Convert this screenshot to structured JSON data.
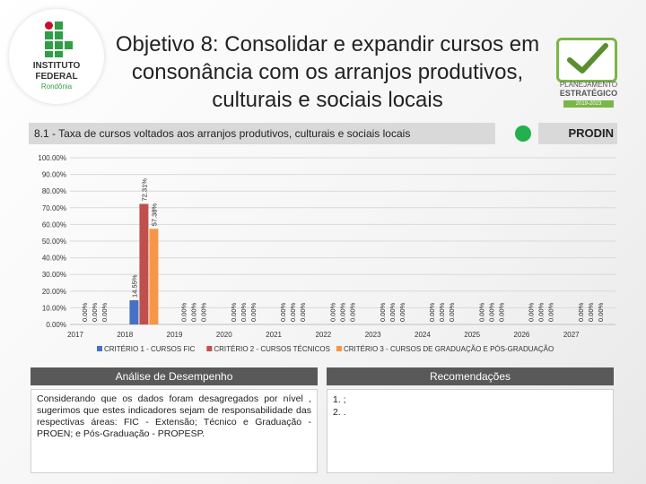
{
  "logo": {
    "line1": "INSTITUTO",
    "line2": "FEDERAL",
    "line3": "Rondônia"
  },
  "title": "Objetivo 8: Consolidar e expandir cursos em consonância com os arranjos produtivos, culturais e sociais locais",
  "brand_logo": {
    "line1": "PLANEJAMENTO",
    "line2": "ESTRATÉGICO",
    "line3": "2019-2023"
  },
  "indicator_label": "8.1 - Taxa de cursos voltados aos arranjos produtivos, culturais e sociais locais",
  "status_color": "#22b14c",
  "owner": "PRODIN",
  "chart_data": {
    "type": "bar",
    "categories": [
      "2017",
      "2018",
      "2019",
      "2020",
      "2021",
      "2022",
      "2023",
      "2024",
      "2025",
      "2026",
      "2027"
    ],
    "series": [
      {
        "name": "CRITÉRIO 1 - CURSOS FIC",
        "color": "#4472c4",
        "values": [
          0,
          14.55,
          0,
          0,
          0,
          0,
          0,
          0,
          0,
          0,
          0
        ]
      },
      {
        "name": "CRITÉRIO 2 - CURSOS TÉCNICOS",
        "color": "#c0504d",
        "values": [
          0,
          72.31,
          0,
          0,
          0,
          0,
          0,
          0,
          0,
          0,
          0
        ]
      },
      {
        "name": "CRITÉRIO 3 - CURSOS DE GRADUAÇÃO E PÓS-GRADUAÇÃO",
        "color": "#f79646",
        "values": [
          0,
          57.38,
          0,
          0,
          0,
          0,
          0,
          0,
          0,
          0,
          0
        ]
      }
    ],
    "data_labels": [
      [
        "0.00%",
        "14.55%",
        "0.00%",
        "0.00%",
        "0.00%",
        "0.00%",
        "0.00%",
        "0.00%",
        "0.00%",
        "0.00%",
        "0.00%"
      ],
      [
        "0.00%",
        "72.31%",
        "0.00%",
        "0.00%",
        "0.00%",
        "0.00%",
        "0.00%",
        "0.00%",
        "0.00%",
        "0.00%",
        "0.00%"
      ],
      [
        "0.00%",
        "57.38%",
        "0.00%",
        "0.00%",
        "0.00%",
        "0.00%",
        "0.00%",
        "0.00%",
        "0.00%",
        "0.00%",
        "0.00%"
      ]
    ],
    "ylim": [
      0,
      100
    ],
    "yticks": [
      0,
      10,
      20,
      30,
      40,
      50,
      60,
      70,
      80,
      90,
      100
    ],
    "ytick_labels": [
      "0.00%",
      "10.00%",
      "20.00%",
      "30.00%",
      "40.00%",
      "50.00%",
      "60.00%",
      "70.00%",
      "80.00%",
      "90.00%",
      "100.00%"
    ],
    "grid": true,
    "legend": "bottom"
  },
  "analysis": {
    "heading": "Análise de Desempenho",
    "text": "Considerando que os dados foram desagregados por nível , sugerimos que estes indicadores sejam de responsabilidade das respectivas áreas: FIC - Extensão; Técnico e Graduação - PROEN; e Pós-Graduação - PROPESP."
  },
  "recommendations": {
    "heading": "Recomendações",
    "items": [
      "1.  ;",
      "2.  ."
    ]
  }
}
